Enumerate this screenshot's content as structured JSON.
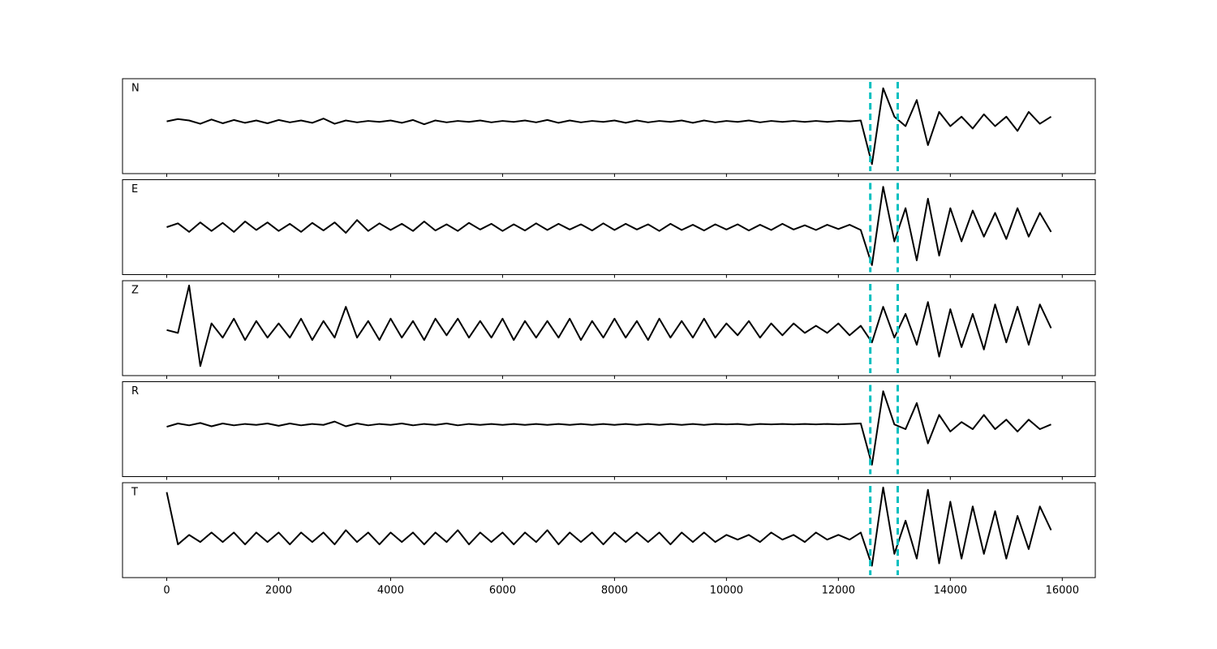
{
  "chart_data": {
    "type": "line",
    "x": [
      0,
      200,
      400,
      600,
      800,
      1000,
      1200,
      1400,
      1600,
      1800,
      2000,
      2200,
      2400,
      2600,
      2800,
      3000,
      3200,
      3400,
      3600,
      3800,
      4000,
      4200,
      4400,
      4600,
      4800,
      5000,
      5200,
      5400,
      5600,
      5800,
      6000,
      6200,
      6400,
      6600,
      6800,
      7000,
      7200,
      7400,
      7600,
      7800,
      8000,
      8200,
      8400,
      8600,
      8800,
      9000,
      9200,
      9400,
      9600,
      9800,
      10000,
      10200,
      10400,
      10600,
      10800,
      11000,
      11200,
      11400,
      11600,
      11800,
      12000,
      12200,
      12400,
      12600,
      12800,
      13000,
      13200,
      13400,
      13600,
      13800,
      14000,
      14200,
      14400,
      14600,
      14800,
      15000,
      15200,
      15400,
      15600,
      15800
    ],
    "xlim": [
      -790,
      16590
    ],
    "xticks": [
      0,
      2000,
      4000,
      6000,
      8000,
      10000,
      12000,
      14000,
      16000
    ],
    "ylim": [
      -1,
      1
    ],
    "markers": [
      12570,
      13060
    ],
    "marker_color": "#00bfbf",
    "series": [
      {
        "name": "N",
        "color": "#000000",
        "values": [
          0.1,
          0.15,
          0.12,
          0.05,
          0.14,
          0.06,
          0.13,
          0.07,
          0.12,
          0.06,
          0.13,
          0.08,
          0.12,
          0.07,
          0.16,
          0.05,
          0.12,
          0.08,
          0.11,
          0.09,
          0.12,
          0.07,
          0.13,
          0.04,
          0.12,
          0.08,
          0.11,
          0.09,
          0.12,
          0.08,
          0.11,
          0.09,
          0.12,
          0.08,
          0.13,
          0.07,
          0.12,
          0.08,
          0.11,
          0.09,
          0.12,
          0.07,
          0.12,
          0.08,
          0.11,
          0.09,
          0.12,
          0.07,
          0.12,
          0.08,
          0.11,
          0.09,
          0.12,
          0.08,
          0.11,
          0.09,
          0.11,
          0.09,
          0.11,
          0.09,
          0.11,
          0.1,
          0.12,
          -0.8,
          0.8,
          0.2,
          0.0,
          0.55,
          -0.4,
          0.3,
          0.0,
          0.2,
          -0.05,
          0.25,
          0.0,
          0.2,
          -0.1,
          0.3,
          0.05,
          0.2
        ]
      },
      {
        "name": "E",
        "color": "#000000",
        "values": [
          0.0,
          0.08,
          -0.1,
          0.1,
          -0.08,
          0.09,
          -0.1,
          0.12,
          -0.06,
          0.1,
          -0.08,
          0.07,
          -0.1,
          0.09,
          -0.07,
          0.1,
          -0.12,
          0.15,
          -0.08,
          0.08,
          -0.06,
          0.07,
          -0.08,
          0.12,
          -0.07,
          0.06,
          -0.08,
          0.09,
          -0.05,
          0.07,
          -0.08,
          0.06,
          -0.07,
          0.08,
          -0.06,
          0.07,
          -0.05,
          0.06,
          -0.07,
          0.08,
          -0.06,
          0.07,
          -0.05,
          0.06,
          -0.08,
          0.07,
          -0.06,
          0.05,
          -0.07,
          0.06,
          -0.05,
          0.06,
          -0.07,
          0.05,
          -0.06,
          0.07,
          -0.05,
          0.04,
          -0.06,
          0.05,
          -0.04,
          0.05,
          -0.06,
          -0.8,
          0.85,
          -0.3,
          0.4,
          -0.7,
          0.6,
          -0.6,
          0.4,
          -0.3,
          0.35,
          -0.2,
          0.3,
          -0.25,
          0.4,
          -0.2,
          0.3,
          -0.1
        ]
      },
      {
        "name": "Z",
        "color": "#000000",
        "values": [
          -0.04,
          -0.1,
          0.9,
          -0.8,
          0.1,
          -0.2,
          0.2,
          -0.25,
          0.15,
          -0.2,
          0.1,
          -0.2,
          0.2,
          -0.25,
          0.15,
          -0.2,
          0.45,
          -0.2,
          0.15,
          -0.25,
          0.2,
          -0.2,
          0.15,
          -0.25,
          0.2,
          -0.15,
          0.2,
          -0.2,
          0.15,
          -0.2,
          0.2,
          -0.25,
          0.15,
          -0.2,
          0.15,
          -0.2,
          0.2,
          -0.25,
          0.15,
          -0.2,
          0.2,
          -0.2,
          0.15,
          -0.25,
          0.2,
          -0.2,
          0.15,
          -0.2,
          0.2,
          -0.2,
          0.1,
          -0.15,
          0.15,
          -0.2,
          0.1,
          -0.15,
          0.1,
          -0.1,
          0.05,
          -0.1,
          0.1,
          -0.15,
          0.05,
          -0.3,
          0.45,
          -0.2,
          0.3,
          -0.35,
          0.55,
          -0.6,
          0.4,
          -0.4,
          0.3,
          -0.45,
          0.5,
          -0.3,
          0.45,
          -0.35,
          0.5,
          0.0
        ]
      },
      {
        "name": "R",
        "color": "#000000",
        "values": [
          0.05,
          0.12,
          0.08,
          0.13,
          0.06,
          0.12,
          0.08,
          0.11,
          0.09,
          0.12,
          0.07,
          0.12,
          0.08,
          0.11,
          0.09,
          0.16,
          0.06,
          0.12,
          0.08,
          0.11,
          0.09,
          0.12,
          0.08,
          0.11,
          0.09,
          0.12,
          0.08,
          0.11,
          0.09,
          0.11,
          0.09,
          0.11,
          0.09,
          0.11,
          0.09,
          0.11,
          0.09,
          0.11,
          0.09,
          0.11,
          0.09,
          0.11,
          0.09,
          0.11,
          0.09,
          0.11,
          0.09,
          0.11,
          0.09,
          0.11,
          0.1,
          0.11,
          0.09,
          0.11,
          0.1,
          0.11,
          0.1,
          0.11,
          0.1,
          0.11,
          0.1,
          0.11,
          0.12,
          -0.75,
          0.8,
          0.1,
          0.0,
          0.55,
          -0.3,
          0.3,
          -0.05,
          0.15,
          0.0,
          0.3,
          0.0,
          0.2,
          -0.05,
          0.2,
          0.0,
          0.1
        ]
      },
      {
        "name": "T",
        "color": "#000000",
        "values": [
          0.8,
          -0.3,
          -0.1,
          -0.25,
          -0.05,
          -0.25,
          -0.05,
          -0.3,
          -0.05,
          -0.25,
          -0.05,
          -0.3,
          -0.05,
          -0.25,
          -0.05,
          -0.3,
          0.0,
          -0.25,
          -0.05,
          -0.3,
          -0.05,
          -0.25,
          -0.05,
          -0.3,
          -0.05,
          -0.25,
          0.0,
          -0.3,
          -0.05,
          -0.25,
          -0.05,
          -0.3,
          -0.05,
          -0.25,
          0.0,
          -0.3,
          -0.05,
          -0.25,
          -0.05,
          -0.3,
          -0.05,
          -0.25,
          -0.05,
          -0.25,
          -0.05,
          -0.3,
          -0.05,
          -0.25,
          -0.05,
          -0.25,
          -0.1,
          -0.2,
          -0.1,
          -0.25,
          -0.05,
          -0.2,
          -0.1,
          -0.25,
          -0.05,
          -0.2,
          -0.1,
          -0.2,
          -0.05,
          -0.75,
          0.9,
          -0.5,
          0.2,
          -0.6,
          0.85,
          -0.7,
          0.6,
          -0.6,
          0.5,
          -0.5,
          0.4,
          -0.6,
          0.3,
          -0.4,
          0.5,
          0.0
        ]
      }
    ]
  }
}
